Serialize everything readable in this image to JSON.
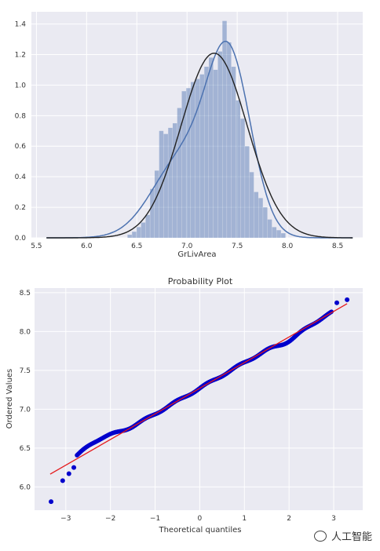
{
  "chart_data": [
    {
      "type": "histogram",
      "xlabel": "GrLivArea",
      "ylabel": "",
      "title": "",
      "xlim": [
        5.45,
        8.75
      ],
      "ylim": [
        0,
        1.48
      ],
      "xticks": [
        5.5,
        6.0,
        6.5,
        7.0,
        7.5,
        8.0,
        8.5
      ],
      "xtick_labels": [
        "5.5",
        "6.0",
        "6.5",
        "7.0",
        "7.5",
        "8.0",
        "8.5"
      ],
      "yticks": [
        0.0,
        0.2,
        0.4,
        0.6,
        0.8,
        1.0,
        1.2,
        1.4
      ],
      "ytick_labels": [
        "0.0",
        "0.2",
        "0.4",
        "0.6",
        "0.8",
        "1.0",
        "1.2",
        "1.4"
      ],
      "bin_width": 0.045,
      "bins": [
        {
          "x": 6.43,
          "density": 0.02
        },
        {
          "x": 6.475,
          "density": 0.04
        },
        {
          "x": 6.52,
          "density": 0.07
        },
        {
          "x": 6.565,
          "density": 0.1
        },
        {
          "x": 6.61,
          "density": 0.15
        },
        {
          "x": 6.655,
          "density": 0.32
        },
        {
          "x": 6.7,
          "density": 0.44
        },
        {
          "x": 6.745,
          "density": 0.7
        },
        {
          "x": 6.79,
          "density": 0.68
        },
        {
          "x": 6.835,
          "density": 0.72
        },
        {
          "x": 6.88,
          "density": 0.75
        },
        {
          "x": 6.925,
          "density": 0.85
        },
        {
          "x": 6.97,
          "density": 0.96
        },
        {
          "x": 7.015,
          "density": 0.98
        },
        {
          "x": 7.06,
          "density": 1.02
        },
        {
          "x": 7.105,
          "density": 1.04
        },
        {
          "x": 7.15,
          "density": 1.07
        },
        {
          "x": 7.195,
          "density": 1.12
        },
        {
          "x": 7.24,
          "density": 1.18
        },
        {
          "x": 7.285,
          "density": 1.1
        },
        {
          "x": 7.33,
          "density": 1.22
        },
        {
          "x": 7.375,
          "density": 1.42
        },
        {
          "x": 7.42,
          "density": 1.28
        },
        {
          "x": 7.465,
          "density": 1.12
        },
        {
          "x": 7.51,
          "density": 0.9
        },
        {
          "x": 7.555,
          "density": 0.78
        },
        {
          "x": 7.6,
          "density": 0.6
        },
        {
          "x": 7.645,
          "density": 0.43
        },
        {
          "x": 7.69,
          "density": 0.3
        },
        {
          "x": 7.735,
          "density": 0.26
        },
        {
          "x": 7.78,
          "density": 0.2
        },
        {
          "x": 7.825,
          "density": 0.12
        },
        {
          "x": 7.87,
          "density": 0.07
        },
        {
          "x": 7.915,
          "density": 0.05
        },
        {
          "x": 7.96,
          "density": 0.03
        }
      ],
      "kde_color": "#4c72b0",
      "normal_fit": {
        "mean": 7.27,
        "std": 0.33,
        "color": "#222222"
      },
      "kde_peak": {
        "x": 7.38,
        "y": 1.22
      },
      "bar_color": "#4c72b0",
      "background": "#eaeaf2"
    },
    {
      "type": "scatter",
      "title": "Probability Plot",
      "xlabel": "Theoretical quantiles",
      "ylabel": "Ordered Values",
      "xlim": [
        -3.7,
        3.65
      ],
      "ylim": [
        5.7,
        8.56
      ],
      "xticks": [
        -3,
        -2,
        -1,
        0,
        1,
        2,
        3
      ],
      "xtick_labels": [
        "−3",
        "−2",
        "−1",
        "0",
        "1",
        "2",
        "3"
      ],
      "yticks": [
        6.0,
        6.5,
        7.0,
        7.5,
        8.0,
        8.5
      ],
      "ytick_labels": [
        "6.0",
        "6.5",
        "7.0",
        "7.5",
        "8.0",
        "8.5"
      ],
      "fit_line": {
        "slope": 0.33,
        "intercept": 7.27,
        "x_range": [
          -3.35,
          3.3
        ],
        "color": "#e41a1c"
      },
      "points_color": "#0000cc",
      "outliers": [
        {
          "x": -3.33,
          "y": 5.81
        },
        {
          "x": -3.07,
          "y": 6.08
        },
        {
          "x": -2.93,
          "y": 6.17
        },
        {
          "x": -2.82,
          "y": 6.25
        },
        {
          "x": 3.07,
          "y": 8.37
        },
        {
          "x": 3.3,
          "y": 8.41
        }
      ],
      "bulk_range": [
        -2.75,
        2.95
      ],
      "background": "#eaeaf2"
    }
  ],
  "watermark": {
    "text": "人工智能"
  }
}
